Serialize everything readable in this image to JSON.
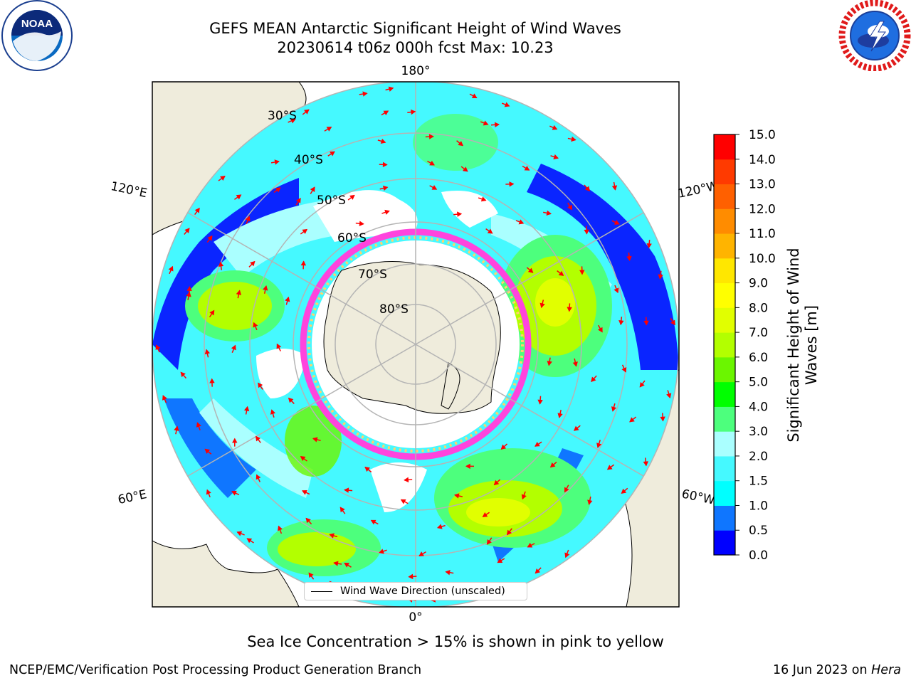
{
  "header": {
    "title_line1": "GEFS MEAN Antarctic Significant Height of Wind Waves",
    "title_line2": "20230614 t06z 000h fcst   Max: 10.23",
    "logos": [
      "noaa-logo",
      "national-weather-service-logo"
    ],
    "logo_text": {
      "noaa": "NOAA",
      "nws": "NATIONAL WEATHER SERVICE"
    }
  },
  "map": {
    "projection": "south-polar-stereographic",
    "longitude_labels": [
      "180°",
      "120°E",
      "120°W",
      "60°E",
      "60°W",
      "0°"
    ],
    "latitude_labels": [
      "30°S",
      "40°S",
      "50°S",
      "60°S",
      "70°S",
      "80°S"
    ],
    "colors": {
      "land": "#efecdc",
      "ice_pink": "#ff44dd",
      "ice_yellow": "#ffd36e",
      "grid": "#b4b4b4",
      "arrow": "#ff0000"
    }
  },
  "legend": {
    "label": "Wind Wave Direction (unscaled)"
  },
  "colorbar": {
    "label": "Significant Height of Wind Waves [m]",
    "ticks": [
      "0.0",
      "0.5",
      "1.0",
      "1.5",
      "2.0",
      "3.0",
      "4.0",
      "5.0",
      "6.0",
      "7.0",
      "8.0",
      "9.0",
      "10.0",
      "11.0",
      "12.0",
      "13.0",
      "14.0",
      "15.0"
    ],
    "colors": [
      "#0000ff",
      "#0f76ff",
      "#00ffff",
      "#45f9ff",
      "#aaffff",
      "#4dff7d",
      "#00ff00",
      "#6bf600",
      "#b3ff00",
      "#e1ff00",
      "#ffff00",
      "#ffe700",
      "#ffb400",
      "#ff8c00",
      "#ff6000",
      "#ff3a00",
      "#ff0000"
    ]
  },
  "footer": {
    "note": "Sea Ice Concentration > 15% is shown in pink to yellow",
    "branch": "NCEP/EMC/Verification Post Processing Product Generation Branch",
    "date": "16 Jun 2023 on ",
    "host": "Hera"
  }
}
